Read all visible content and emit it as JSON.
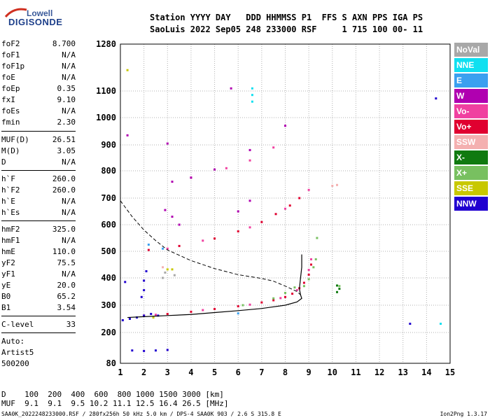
{
  "logo": {
    "top": "Lowell",
    "bottom": "DIGISONDE"
  },
  "header": {
    "line1": "Station YYYY DAY   DDD HHMMSS P1  FFS S AXN PPS IGA PS",
    "line2": "SaoLuis 2022 Sep05 248 233000 RSF     1 715 100 00- 11"
  },
  "params_group1": [
    {
      "name": "foF2",
      "value": "8.700"
    },
    {
      "name": "foF1",
      "value": "N/A"
    },
    {
      "name": "foF1p",
      "value": "N/A"
    },
    {
      "name": "foE",
      "value": "N/A"
    },
    {
      "name": "foEp",
      "value": "0.35"
    },
    {
      "name": "fxI",
      "value": "9.10"
    },
    {
      "name": "foEs",
      "value": "N/A"
    },
    {
      "name": "fmin",
      "value": "2.30"
    }
  ],
  "params_group2": [
    {
      "name": "MUF(D)",
      "value": "26.51"
    },
    {
      "name": "M(D)",
      "value": "3.05"
    },
    {
      "name": "D",
      "value": "N/A"
    }
  ],
  "params_group3": [
    {
      "name": "h`F",
      "value": "260.0"
    },
    {
      "name": "h`F2",
      "value": "260.0"
    },
    {
      "name": "h`E",
      "value": "N/A"
    },
    {
      "name": "h`Es",
      "value": "N/A"
    }
  ],
  "params_group4": [
    {
      "name": "hmF2",
      "value": "325.0"
    },
    {
      "name": "hmF1",
      "value": "N/A"
    },
    {
      "name": "hmE",
      "value": "110.0"
    },
    {
      "name": "yF2",
      "value": "75.5"
    },
    {
      "name": "yF1",
      "value": "N/A"
    },
    {
      "name": "yE",
      "value": "20.0"
    },
    {
      "name": "B0",
      "value": "65.2"
    },
    {
      "name": "B1",
      "value": "3.54"
    }
  ],
  "params_group5": [
    {
      "name": "C-level",
      "value": "33"
    }
  ],
  "scaling": {
    "line1": "Auto:",
    "line2": "Artist5",
    "line3": "500200"
  },
  "legend": [
    {
      "label": "NoVal",
      "color": "#a8a8a8"
    },
    {
      "label": "NNE",
      "color": "#10e0f0"
    },
    {
      "label": "E",
      "color": "#3aa0f0"
    },
    {
      "label": "W",
      "color": "#b000b0"
    },
    {
      "label": "Vo-",
      "color": "#f040a0"
    },
    {
      "label": "Vo+",
      "color": "#e00030"
    },
    {
      "label": "SSW",
      "color": "#f4b0b0"
    },
    {
      "label": "X-",
      "color": "#107a10"
    },
    {
      "label": "X+",
      "color": "#78c060"
    },
    {
      "label": "SSE",
      "color": "#c8c800"
    },
    {
      "label": "NNW",
      "color": "#2000d0"
    }
  ],
  "muf_table": {
    "line1": "D    100  200  400  600  800 1000 1500 3000 [km]",
    "line2": "MUF  9.1  9.1  9.5 10.2 11.1 12.5 16.4 26.5 [MHz]"
  },
  "footer": "SAA0K_2022248233000.RSF / 280fx256h 50 kHz 5.0 km / DPS-4 SAA0K 903 / 2.6 S 315.8 E",
  "version": "Ion2Png 1.3.17",
  "chart_data": {
    "type": "scatter",
    "x_ticks": [
      "1",
      "2",
      "3",
      "4",
      "5",
      "6",
      "7",
      "8",
      "9",
      "10",
      "11",
      "12",
      "13",
      "14",
      "15"
    ],
    "y_ticks": [
      "80",
      "200",
      "300",
      "400",
      "500",
      "600",
      "700",
      "800",
      "900",
      "1000",
      "1100",
      "1280"
    ],
    "xlim": [
      1,
      15
    ],
    "ylim": [
      80,
      1280
    ],
    "grid": true,
    "legend_position": "right",
    "series": [
      {
        "name": "Vo+",
        "color": "#e00030",
        "points": [
          [
            2.0,
            262
          ],
          [
            3.0,
            268
          ],
          [
            4.0,
            276
          ],
          [
            5.0,
            286
          ],
          [
            6.0,
            296
          ],
          [
            7.0,
            310
          ],
          [
            7.5,
            318
          ],
          [
            8.0,
            330
          ],
          [
            8.3,
            342
          ],
          [
            8.6,
            362
          ],
          [
            8.8,
            382
          ],
          [
            9.0,
            412
          ],
          [
            9.1,
            450
          ],
          [
            2.2,
            505
          ],
          [
            3.5,
            520
          ],
          [
            5.0,
            548
          ],
          [
            6.0,
            575
          ],
          [
            7.0,
            610
          ],
          [
            7.6,
            640
          ],
          [
            8.2,
            672
          ],
          [
            8.6,
            700
          ]
        ]
      },
      {
        "name": "Vo-",
        "color": "#f040a0",
        "points": [
          [
            2.5,
            265
          ],
          [
            4.5,
            282
          ],
          [
            6.5,
            302
          ],
          [
            7.8,
            326
          ],
          [
            8.5,
            355
          ],
          [
            9.0,
            430
          ],
          [
            9.1,
            470
          ],
          [
            3.0,
            510
          ],
          [
            4.5,
            540
          ],
          [
            6.5,
            590
          ],
          [
            8.0,
            660
          ],
          [
            9.0,
            730
          ],
          [
            4.0,
            775
          ],
          [
            5.5,
            810
          ],
          [
            6.5,
            840
          ],
          [
            7.5,
            890
          ]
        ]
      },
      {
        "name": "X+",
        "color": "#78c060",
        "points": [
          [
            8.8,
            370
          ],
          [
            9.0,
            395
          ],
          [
            9.2,
            440
          ],
          [
            9.3,
            470
          ],
          [
            9.35,
            550
          ],
          [
            7.5,
            325
          ],
          [
            8.0,
            345
          ],
          [
            8.4,
            365
          ],
          [
            6.2,
            300
          ],
          [
            10.3,
            370
          ]
        ]
      },
      {
        "name": "X-",
        "color": "#107a10",
        "points": [
          [
            10.2,
            372
          ],
          [
            10.3,
            360
          ],
          [
            10.2,
            348
          ]
        ]
      },
      {
        "name": "W",
        "color": "#b000b0",
        "points": [
          [
            5.7,
            1110
          ],
          [
            1.3,
            935
          ],
          [
            8.0,
            970
          ],
          [
            3.0,
            905
          ],
          [
            3.2,
            760
          ],
          [
            4.0,
            775
          ],
          [
            5.0,
            805
          ],
          [
            6.5,
            880
          ],
          [
            2.9,
            655
          ],
          [
            3.2,
            630
          ],
          [
            3.5,
            600
          ],
          [
            6.0,
            650
          ],
          [
            6.5,
            690
          ]
        ]
      },
      {
        "name": "NNW",
        "color": "#2000d0",
        "points": [
          [
            1.1,
            245
          ],
          [
            1.4,
            250
          ],
          [
            1.7,
            255
          ],
          [
            2.0,
            262
          ],
          [
            2.3,
            268
          ],
          [
            2.6,
            262
          ],
          [
            1.5,
            130
          ],
          [
            2.0,
            128
          ],
          [
            2.5,
            130
          ],
          [
            3.0,
            132
          ],
          [
            2.0,
            355
          ],
          [
            2.0,
            390
          ],
          [
            1.9,
            330
          ],
          [
            13.3,
            232
          ],
          [
            14.4,
            1072
          ],
          [
            1.2,
            385
          ],
          [
            2.1,
            425
          ]
        ]
      },
      {
        "name": "NNE",
        "color": "#10e0f0",
        "points": [
          [
            6.6,
            1110
          ],
          [
            6.6,
            1085
          ],
          [
            6.6,
            1060
          ],
          [
            14.6,
            232
          ]
        ]
      },
      {
        "name": "E",
        "color": "#3aa0f0",
        "points": [
          [
            2.2,
            525
          ],
          [
            2.8,
            510
          ],
          [
            6.0,
            270
          ]
        ]
      },
      {
        "name": "SSW",
        "color": "#f4b0b0",
        "points": [
          [
            10.0,
            745
          ],
          [
            10.2,
            748
          ],
          [
            2.8,
            440
          ]
        ]
      },
      {
        "name": "SSE",
        "color": "#c8c800",
        "points": [
          [
            2.4,
            255
          ],
          [
            3.2,
            432
          ],
          [
            1.3,
            1180
          ],
          [
            3.0,
            432
          ]
        ]
      },
      {
        "name": "NoVal",
        "color": "#a8a8a8",
        "points": [
          [
            2.8,
            400
          ],
          [
            2.9,
            420
          ],
          [
            3.3,
            410
          ]
        ]
      }
    ],
    "profile_curve": [
      [
        8.7,
        488
      ],
      [
        8.7,
        440
      ],
      [
        8.65,
        400
      ],
      [
        8.6,
        360
      ],
      [
        8.65,
        338
      ],
      [
        8.7,
        325
      ],
      [
        8.5,
        312
      ],
      [
        8.0,
        300
      ],
      [
        7.0,
        288
      ],
      [
        6.0,
        280
      ],
      [
        5.0,
        273
      ],
      [
        4.0,
        266
      ],
      [
        3.0,
        262
      ],
      [
        2.0,
        258
      ],
      [
        1.3,
        255
      ]
    ],
    "profile_dashed": [
      [
        1.0,
        690
      ],
      [
        1.5,
        630
      ],
      [
        2.0,
        580
      ],
      [
        2.5,
        540
      ],
      [
        3.0,
        505
      ],
      [
        4.0,
        465
      ],
      [
        5.0,
        435
      ],
      [
        6.0,
        412
      ],
      [
        7.0,
        398
      ],
      [
        7.5,
        388
      ],
      [
        8.0,
        370
      ],
      [
        8.5,
        350
      ],
      [
        8.65,
        338
      ]
    ]
  }
}
